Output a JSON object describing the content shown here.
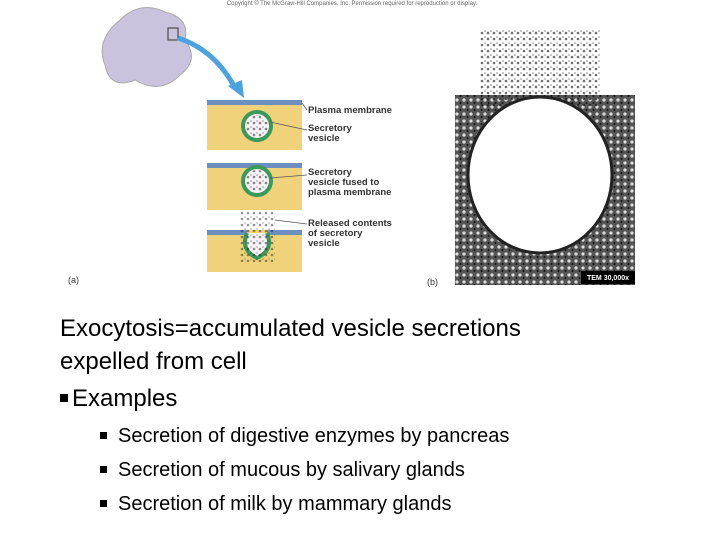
{
  "figure": {
    "copyright": "Copyright © The McGraw-Hill Companies, Inc. Permission required for reproduction or display.",
    "labels": [
      [
        "Plasma membrane"
      ],
      [
        "Secretory",
        "vesicle"
      ],
      [
        "Secretory",
        "vesicle fused to",
        "plasma membrane"
      ],
      [
        "Released contents",
        "of secretory",
        "vesicle"
      ]
    ],
    "panel_a": "(a)",
    "panel_b": "(b)",
    "scale": "TEM 30,000x"
  },
  "body": {
    "main": [
      "Exocytosis=accumulated vesicle secretions",
      "expelled from cell"
    ],
    "sub_heading": "Examples",
    "bullets": [
      "Secretion of digestive enzymes by pancreas",
      "Secretion of mucous by salivary glands",
      "Secretion of milk by mammary glands"
    ]
  }
}
